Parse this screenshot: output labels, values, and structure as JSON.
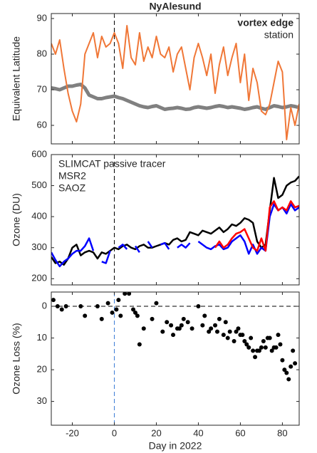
{
  "chart_data": [
    {
      "type": "line",
      "title": "NyAlesund",
      "ylabel": "Equivalent Latitude",
      "xlim": [
        -30,
        88
      ],
      "xticks": [
        -20,
        0,
        20,
        40,
        60,
        80
      ],
      "ylim": [
        54.8,
        91.4
      ],
      "yticks": [
        60,
        70,
        80,
        90
      ],
      "vline": 0,
      "legend": "upper right",
      "x": [
        -30,
        -28,
        -26,
        -24,
        -22,
        -20,
        -18,
        -16,
        -14,
        -12,
        -10,
        -8,
        -6,
        -4,
        -2,
        0,
        2,
        4,
        6,
        8,
        10,
        12,
        14,
        16,
        18,
        20,
        22,
        24,
        26,
        28,
        30,
        32,
        34,
        36,
        38,
        40,
        42,
        44,
        46,
        48,
        50,
        52,
        54,
        56,
        58,
        60,
        62,
        64,
        66,
        68,
        70,
        72,
        74,
        76,
        78,
        80,
        82,
        84,
        86,
        88
      ],
      "series": [
        {
          "name": "vortex edge",
          "color": "#808080",
          "width": 5,
          "values": [
            70.5,
            70.3,
            70,
            70.5,
            71,
            71,
            71.3,
            71.5,
            70.5,
            68.5,
            68,
            67.5,
            67.5,
            67.8,
            68,
            68.2,
            67.8,
            67.5,
            67,
            66.5,
            66,
            65.5,
            65.2,
            65,
            65.3,
            65.5,
            65,
            64.5,
            64.7,
            64.8,
            65,
            64.8,
            64.5,
            64.6,
            65,
            65.2,
            65,
            64.8,
            65,
            65.3,
            65.5,
            65.3,
            65,
            65.2,
            65,
            64.8,
            64.5,
            64.7,
            65,
            65.2,
            64.8,
            64.5,
            65,
            65.5,
            65.3,
            65,
            65.2,
            65.5,
            65.3,
            65
          ]
        },
        {
          "name": "station",
          "color": "#f07737",
          "width": 2,
          "values": [
            83,
            80,
            84,
            76,
            69,
            64,
            61,
            66,
            80,
            83,
            86,
            79,
            85,
            82,
            83,
            86,
            83,
            76,
            88,
            79,
            77,
            86,
            78,
            82,
            79,
            85,
            80,
            79,
            82,
            75,
            80,
            82,
            76,
            70,
            79,
            83,
            79,
            74,
            80,
            69,
            77,
            82,
            74,
            79,
            83,
            72,
            80,
            67,
            76,
            72,
            64,
            63,
            66,
            72,
            78,
            75,
            56,
            65,
            60,
            66
          ]
        }
      ]
    },
    {
      "type": "line",
      "ylabel": "Ozone (DU)",
      "xlim": [
        -30,
        88
      ],
      "xticks": [
        -20,
        0,
        20,
        40,
        60,
        80
      ],
      "ylim": [
        180,
        600
      ],
      "yticks": [
        200,
        300,
        400,
        500,
        600
      ],
      "vline": 0,
      "legend": "upper left",
      "x": [
        -30,
        -28,
        -26,
        -24,
        -22,
        -20,
        -18,
        -16,
        -14,
        -12,
        -10,
        -8,
        -6,
        -4,
        -2,
        0,
        2,
        4,
        6,
        8,
        10,
        12,
        14,
        16,
        18,
        20,
        22,
        24,
        26,
        28,
        30,
        32,
        34,
        36,
        38,
        40,
        42,
        44,
        46,
        48,
        50,
        52,
        54,
        56,
        58,
        60,
        62,
        64,
        66,
        68,
        70,
        72,
        74,
        76,
        78,
        80,
        82,
        84,
        86,
        88
      ],
      "series": [
        {
          "name": "SLIMCAT passive tracer",
          "color": "#000000",
          "width": 2.5,
          "values": [
            270,
            250,
            255,
            245,
            265,
            300,
            310,
            275,
            285,
            290,
            285,
            265,
            285,
            280,
            290,
            300,
            295,
            305,
            310,
            300,
            295,
            305,
            310,
            300,
            300,
            305,
            310,
            315,
            310,
            325,
            330,
            320,
            325,
            350,
            345,
            340,
            355,
            350,
            345,
            355,
            365,
            350,
            360,
            375,
            370,
            380,
            395,
            390,
            380,
            320,
            300,
            310,
            420,
            525,
            460,
            470,
            500,
            510,
            515,
            530
          ]
        },
        {
          "name": "MSR2",
          "color": "#0000ff",
          "width": 2.5,
          "values": [
            285,
            260,
            240,
            255,
            265,
            280,
            290,
            290,
            305,
            330,
            290,
            null,
            255,
            250,
            290,
            null,
            300,
            310,
            295,
            null,
            305,
            285,
            null,
            320,
            300,
            null,
            310,
            315,
            295,
            null,
            300,
            310,
            300,
            315,
            null,
            320,
            310,
            300,
            295,
            305,
            310,
            295,
            300,
            320,
            330,
            340,
            320,
            280,
            310,
            280,
            300,
            290,
            400,
            440,
            420,
            430,
            410,
            440,
            420,
            430
          ]
        },
        {
          "name": "SAOZ",
          "color": "#ff0000",
          "width": 2.5,
          "values": [
            null,
            null,
            null,
            null,
            null,
            null,
            null,
            null,
            null,
            null,
            null,
            null,
            null,
            null,
            null,
            null,
            null,
            null,
            null,
            null,
            null,
            null,
            null,
            null,
            null,
            null,
            null,
            null,
            null,
            null,
            null,
            null,
            null,
            null,
            null,
            null,
            null,
            null,
            null,
            300,
            320,
            300,
            310,
            330,
            345,
            350,
            360,
            330,
            300,
            290,
            330,
            290,
            430,
            450,
            420,
            430,
            420,
            450,
            430,
            435
          ]
        }
      ]
    },
    {
      "type": "scatter",
      "ylabel": "Ozone Loss (%)",
      "xlabel": "Day in 2022",
      "xlim": [
        -30,
        88
      ],
      "xticks": [
        -20,
        0,
        20,
        40,
        60,
        80
      ],
      "ylim": [
        -4.5,
        37.5
      ],
      "yticks": [
        0,
        10,
        20,
        30
      ],
      "y_reversed": true,
      "vline": 0,
      "hline": 0,
      "color": "#000000",
      "x": [
        -29,
        -27,
        -25,
        -23,
        -16,
        -14,
        -8,
        -6,
        -3,
        -1,
        1,
        2,
        3,
        5,
        7,
        9,
        10,
        11,
        12,
        14,
        18,
        20,
        23,
        25,
        27,
        28,
        30,
        31,
        32,
        33,
        35,
        37,
        40,
        42,
        43,
        45,
        46,
        48,
        49,
        50,
        52,
        53,
        54,
        55,
        57,
        58,
        59,
        60,
        61,
        62,
        63,
        64,
        65,
        66,
        67,
        68,
        69,
        70,
        71,
        72,
        73,
        74,
        75,
        76,
        77,
        78,
        79,
        80,
        81,
        82,
        83,
        84,
        85,
        86
      ],
      "values": [
        -2,
        0,
        1,
        0,
        0,
        3,
        0,
        4,
        -1,
        2,
        1,
        -2,
        3,
        -4,
        -4,
        1,
        2,
        3,
        12,
        7,
        4,
        -1,
        8,
        5,
        6,
        9,
        7,
        7,
        6,
        4,
        5,
        7,
        0,
        6,
        3,
        8,
        7,
        6,
        8,
        4,
        9,
        5,
        10,
        8,
        11,
        8,
        7,
        9,
        9,
        11,
        12,
        13,
        10,
        14,
        16,
        14,
        14,
        13,
        11,
        13,
        10,
        10,
        14,
        13,
        13,
        9,
        12,
        17,
        20,
        21,
        23,
        19,
        14,
        18
      ]
    }
  ]
}
